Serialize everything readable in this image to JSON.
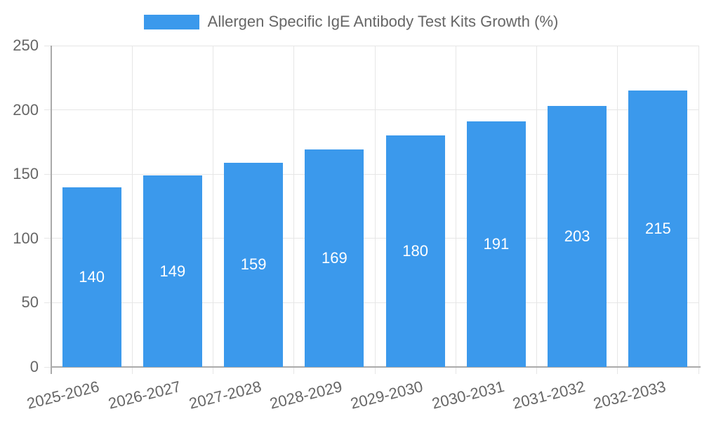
{
  "legend": {
    "label": "Allergen Specific IgE Antibody Test Kits Growth (%)"
  },
  "chart_data": {
    "type": "bar",
    "title": "Allergen Specific IgE Antibody Test Kits Growth (%)",
    "categories": [
      "2025-2026",
      "2026-2027",
      "2027-2028",
      "2028-2029",
      "2029-2030",
      "2030-2031",
      "2031-2032",
      "2032-2033"
    ],
    "values": [
      140,
      149,
      159,
      169,
      180,
      191,
      203,
      215
    ],
    "xlabel": "",
    "ylabel": "",
    "ylim": [
      0,
      250
    ],
    "yticks": [
      0,
      50,
      100,
      150,
      200,
      250
    ],
    "grid": true,
    "legend_position": "top-center",
    "value_labels": "inside-bar-center",
    "x_tick_rotation_deg": -14,
    "colors": {
      "bar": "#3b99ec",
      "grid": "#e6e6e6",
      "axis": "#aaaaaa",
      "tick_label": "#666666",
      "value_label": "#ffffff",
      "background": "#ffffff"
    }
  }
}
